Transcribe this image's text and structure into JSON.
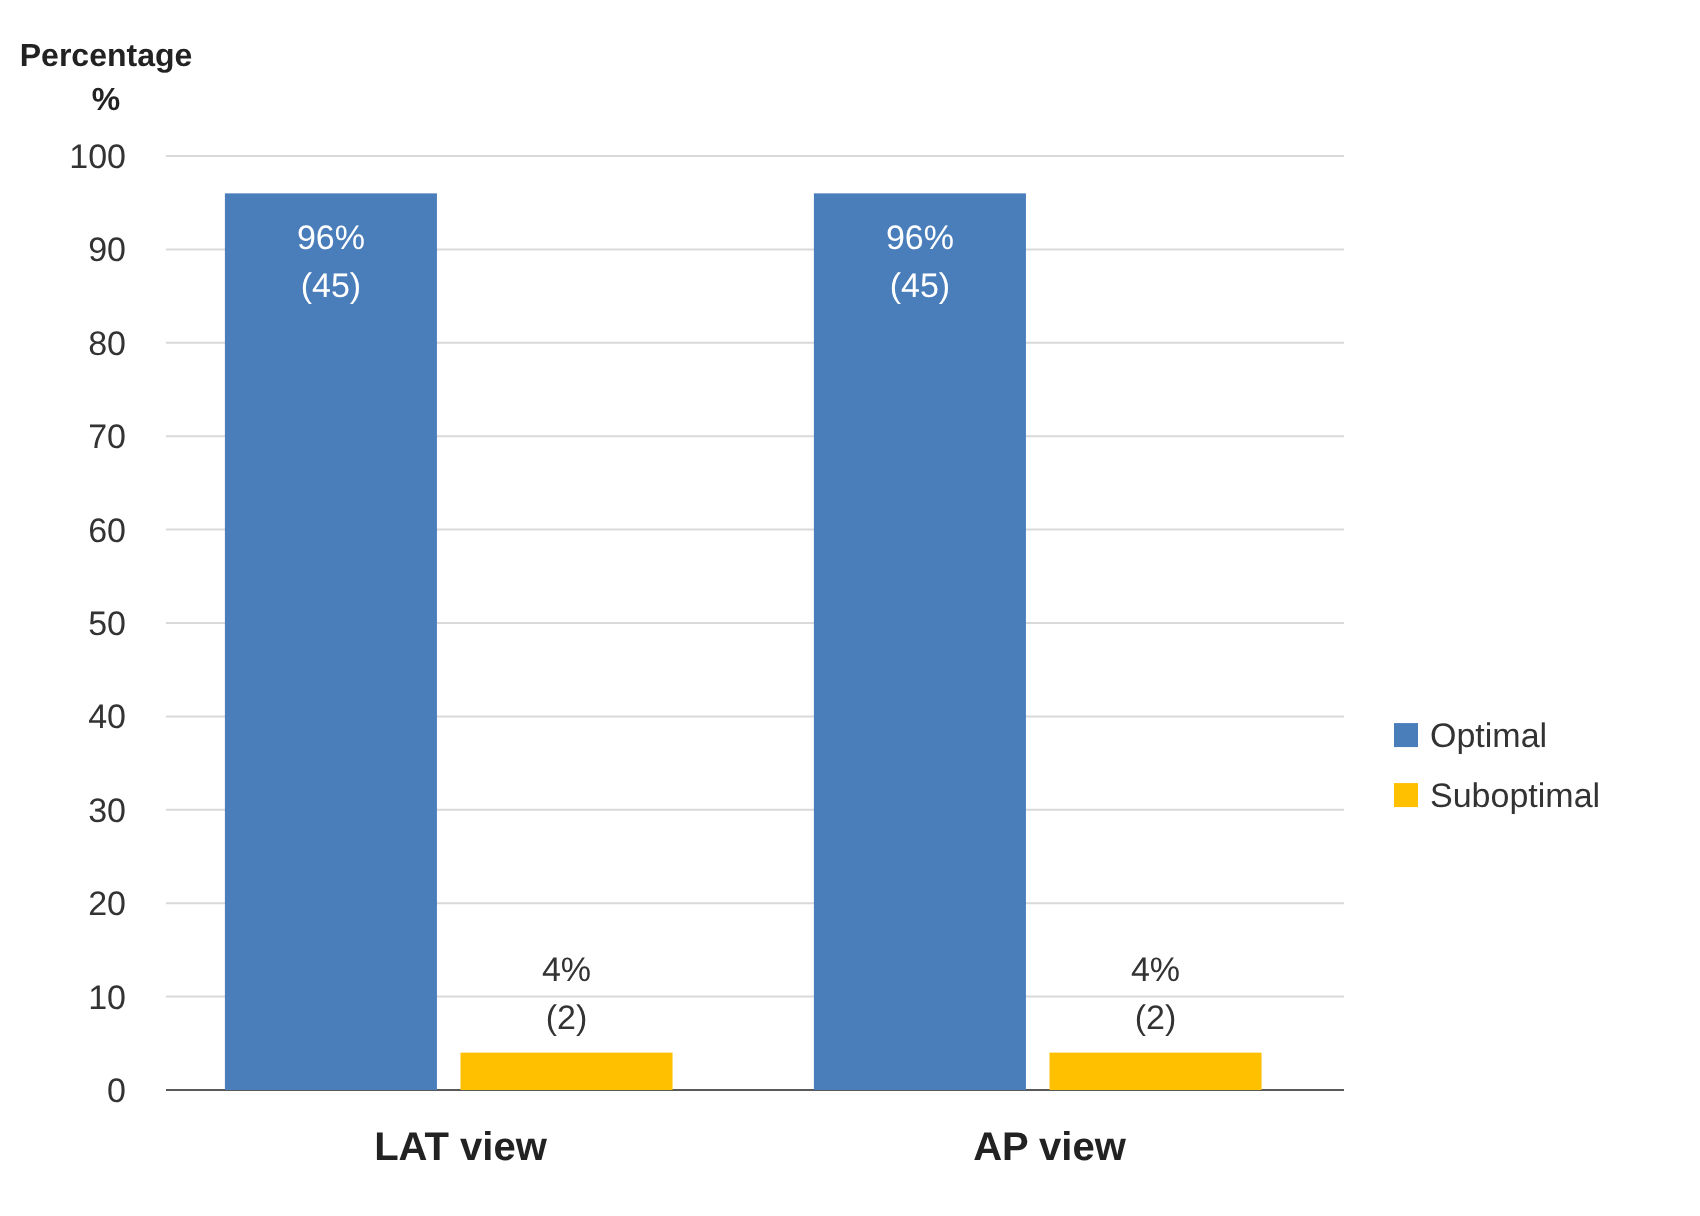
{
  "chart_data": {
    "type": "bar",
    "ylabel": "Percentage\n%",
    "categories": [
      "LAT view",
      "AP view"
    ],
    "series": [
      {
        "name": "Optimal",
        "color": "#4a7ebb",
        "values": [
          96,
          96
        ],
        "value_labels": [
          "96%\n(45)",
          "96%\n(45)"
        ]
      },
      {
        "name": "Suboptimal",
        "color": "#ffc000",
        "values": [
          4,
          4
        ],
        "value_labels": [
          "4%\n(2)",
          "4%\n(2)"
        ]
      }
    ],
    "ylim": [
      0,
      100
    ],
    "yticks": [
      0,
      10,
      20,
      30,
      40,
      50,
      60,
      70,
      80,
      90,
      100
    ],
    "grid": "y",
    "legend": "right"
  }
}
